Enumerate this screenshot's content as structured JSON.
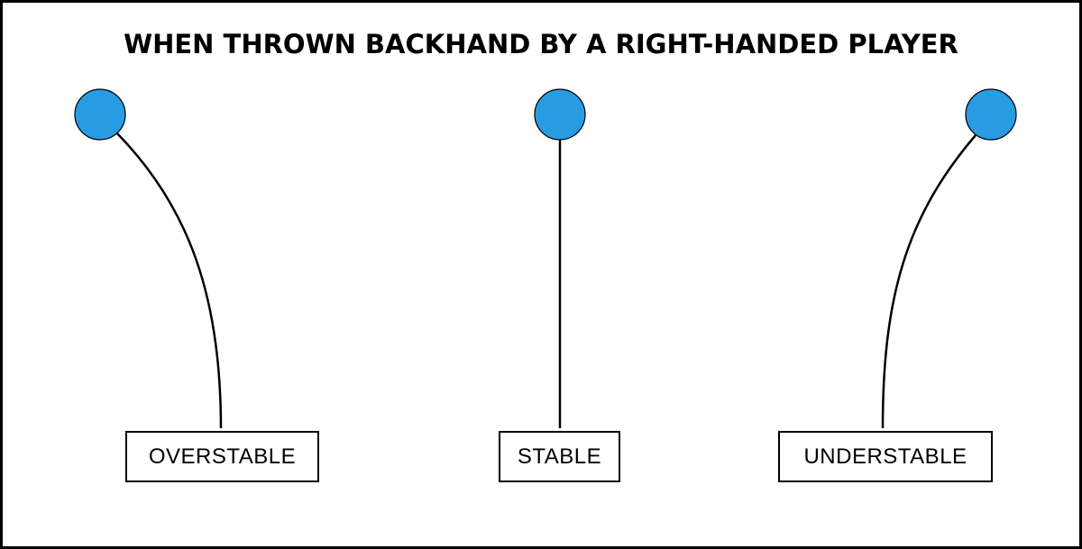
{
  "title": "WHEN THROWN BACKHAND BY A RIGHT-HANDED PLAYER",
  "colors": {
    "disc": "#279ce3",
    "line": "#000000",
    "border": "#000000"
  },
  "flights": [
    {
      "label": "OVERSTABLE"
    },
    {
      "label": "STABLE"
    },
    {
      "label": "UNDERSTABLE"
    }
  ]
}
